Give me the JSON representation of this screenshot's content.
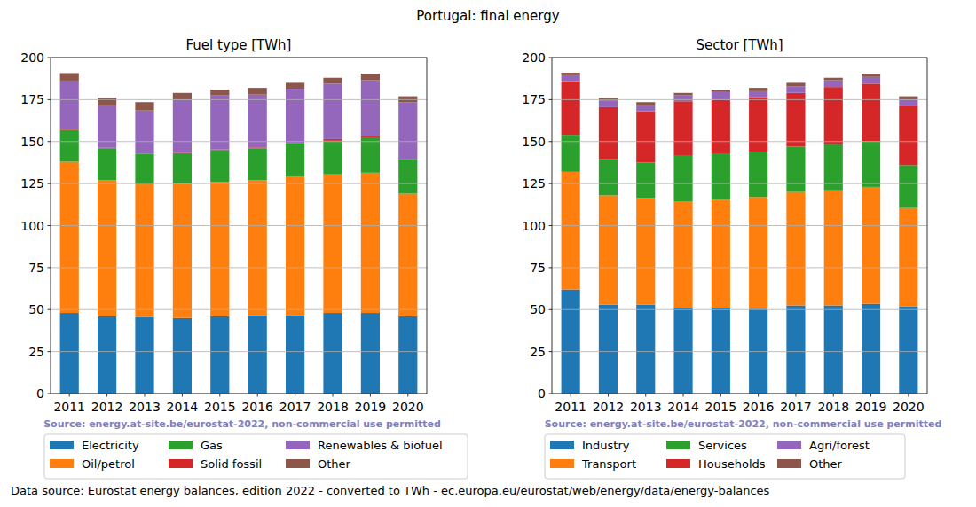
{
  "title": "Portugal: final energy",
  "source": "Data source: Eurostat energy balances, edition 2022 - converted to TWh - ec.europa.eu/eurostat/web/energy/data/energy-balances",
  "chart_data": [
    {
      "type": "bar",
      "title": "Fuel type [TWh]",
      "stacked": true,
      "grid": true,
      "legend": "bottom",
      "annotation": "Source: energy.at-site.be/eurostat-2022, non-commercial use permitted",
      "categories": [
        "2011",
        "2012",
        "2013",
        "2014",
        "2015",
        "2016",
        "2017",
        "2018",
        "2019",
        "2020"
      ],
      "ylim": [
        0,
        200
      ],
      "yticks": [
        0,
        25,
        50,
        75,
        100,
        125,
        150,
        175,
        200
      ],
      "series": [
        {
          "name": "Electricity",
          "color": "#1f77b4",
          "values": [
            48,
            46,
            45.5,
            45,
            46,
            46.5,
            46.5,
            48,
            48,
            46
          ]
        },
        {
          "name": "Oil/petrol",
          "color": "#ff7f0e",
          "values": [
            90,
            81,
            79,
            80,
            80,
            80.5,
            82.5,
            82.5,
            83.5,
            73
          ]
        },
        {
          "name": "Gas",
          "color": "#2ca02c",
          "values": [
            19,
            19,
            18,
            18,
            19,
            19,
            20,
            20,
            21,
            20.5
          ]
        },
        {
          "name": "Solid fossil",
          "color": "#d62728",
          "values": [
            0.3,
            0.3,
            0.3,
            0.3,
            0.3,
            0.5,
            0.3,
            1,
            0.5,
            0.3
          ]
        },
        {
          "name": "Renewables & biofuel",
          "color": "#9467bd",
          "values": [
            29,
            25.2,
            25.7,
            31.7,
            32.2,
            31.5,
            32.2,
            33,
            33.5,
            33.7
          ]
        },
        {
          "name": "Other",
          "color": "#8c564b",
          "values": [
            4.5,
            4.5,
            5,
            4,
            3.5,
            4,
            3.5,
            3.5,
            4,
            3.5
          ]
        }
      ]
    },
    {
      "type": "bar",
      "title": "Sector [TWh]",
      "stacked": true,
      "grid": true,
      "legend": "bottom",
      "annotation": "Source: energy.at-site.be/eurostat-2022, non-commercial use permitted",
      "categories": [
        "2011",
        "2012",
        "2013",
        "2014",
        "2015",
        "2016",
        "2017",
        "2018",
        "2019",
        "2020"
      ],
      "ylim": [
        0,
        200
      ],
      "yticks": [
        0,
        25,
        50,
        75,
        100,
        125,
        150,
        175,
        200
      ],
      "series": [
        {
          "name": "Industry",
          "color": "#1f77b4",
          "values": [
            62,
            53,
            53,
            51,
            51,
            50.5,
            52.5,
            52.5,
            53.5,
            52
          ]
        },
        {
          "name": "Transport",
          "color": "#ff7f0e",
          "values": [
            70,
            65,
            63.5,
            63.5,
            64.5,
            66.5,
            67.5,
            68.5,
            69.5,
            58.5
          ]
        },
        {
          "name": "Services",
          "color": "#2ca02c",
          "values": [
            22,
            21.5,
            21,
            27,
            27.5,
            27,
            27,
            27.5,
            27,
            25.5
          ]
        },
        {
          "name": "Households",
          "color": "#d62728",
          "values": [
            32,
            31,
            30.5,
            32.5,
            32,
            32.5,
            32,
            34,
            34.5,
            35
          ]
        },
        {
          "name": "Agri/forest",
          "color": "#9467bd",
          "values": [
            3.5,
            4,
            3.5,
            3.5,
            4.5,
            3.5,
            4,
            4,
            4,
            4
          ]
        },
        {
          "name": "Other",
          "color": "#8c564b",
          "values": [
            1.5,
            1.5,
            2,
            1.5,
            1.5,
            2,
            2,
            1.5,
            2,
            2
          ]
        }
      ]
    }
  ]
}
